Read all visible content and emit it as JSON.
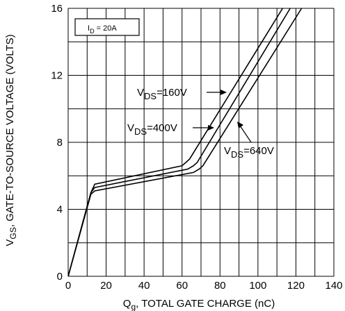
{
  "chart_data": {
    "type": "line",
    "title": "",
    "xlabel": {
      "main": "Q",
      "sub": "g",
      "rest": ", TOTAL GATE CHARGE (nC)"
    },
    "ylabel": {
      "main": "V",
      "sub": "GS",
      "rest": ", GATE-TO-SOURCE VOLTAGE (VOLTS)"
    },
    "xlim": [
      0,
      140
    ],
    "ylim": [
      0,
      16
    ],
    "xticks": [
      0,
      20,
      40,
      60,
      80,
      100,
      120,
      140
    ],
    "yticks": [
      0,
      4,
      8,
      12,
      16
    ],
    "grid": true,
    "legend_box": {
      "main": "I",
      "sub": "D",
      "rest": " = 20A"
    },
    "series": [
      {
        "name": {
          "main": "V",
          "sub": "DS",
          "rest": "=160V"
        },
        "x": [
          0,
          12,
          14,
          60,
          62,
          64,
          113
        ],
        "y": [
          0,
          5.0,
          5.5,
          6.6,
          6.8,
          7.0,
          16
        ]
      },
      {
        "name": {
          "main": "V",
          "sub": "DS",
          "rest": "=400V"
        },
        "x": [
          0,
          12,
          14,
          63,
          66,
          68,
          117
        ],
        "y": [
          0,
          5.0,
          5.3,
          6.4,
          6.6,
          6.8,
          16
        ]
      },
      {
        "name": {
          "main": "V",
          "sub": "DS",
          "rest": "=640V"
        },
        "x": [
          0,
          12,
          14,
          66,
          69,
          71,
          123
        ],
        "y": [
          0,
          4.9,
          5.1,
          6.2,
          6.4,
          6.6,
          16
        ]
      }
    ]
  }
}
